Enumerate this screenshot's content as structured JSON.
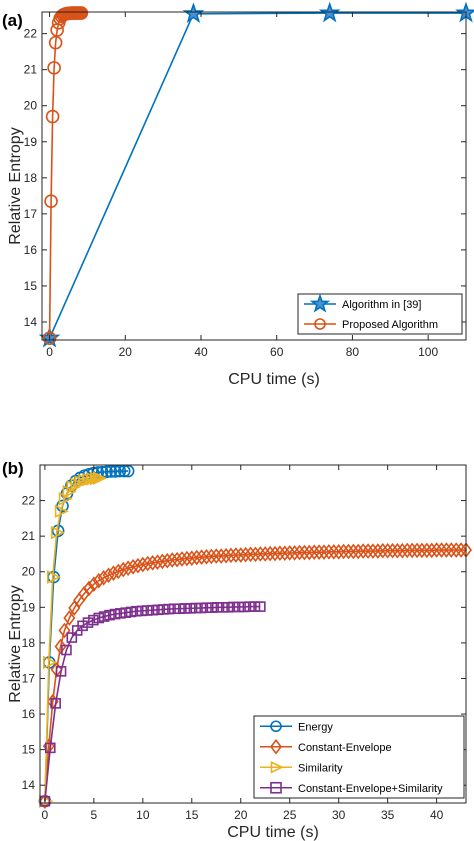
{
  "chart_data": [
    {
      "type": "line",
      "panel_label": "(a)",
      "xlabel": "CPU time (s)",
      "ylabel": "Relative Entropy",
      "xlim": [
        -2,
        110
      ],
      "ylim": [
        13.5,
        22.6
      ],
      "xticks": [
        "0",
        "20",
        "40",
        "60",
        "80",
        "100"
      ],
      "xtick_values": [
        0,
        20,
        40,
        60,
        80,
        100
      ],
      "yticks": [
        "14",
        "15",
        "16",
        "17",
        "18",
        "19",
        "20",
        "21",
        "22"
      ],
      "ytick_values": [
        14,
        15,
        16,
        17,
        18,
        19,
        20,
        21,
        22
      ],
      "grid": false,
      "legend_position": "bottom-right",
      "series": [
        {
          "name": "Algorithm in [39]",
          "color": "#0072BD",
          "marker": "star",
          "x": [
            0,
            38,
            74,
            110
          ],
          "y": [
            13.55,
            22.55,
            22.57,
            22.57
          ]
        },
        {
          "name": "Proposed Algorithm",
          "color": "#D95319",
          "marker": "circle",
          "x": [
            0,
            0.4,
            0.8,
            1.2,
            1.6,
            2.0,
            2.4,
            2.8,
            3.2,
            3.6,
            4.0,
            4.4,
            4.8,
            5.2,
            5.6,
            6.0,
            6.4,
            6.8,
            7.2,
            7.6,
            8.0,
            8.4
          ],
          "y": [
            13.55,
            17.35,
            19.7,
            21.05,
            21.75,
            22.1,
            22.3,
            22.42,
            22.48,
            22.52,
            22.54,
            22.55,
            22.56,
            22.56,
            22.57,
            22.57,
            22.57,
            22.57,
            22.57,
            22.57,
            22.57,
            22.57
          ]
        }
      ]
    },
    {
      "type": "line",
      "panel_label": "(b)",
      "xlabel": "CPU time (s)",
      "ylabel": "Relative Entropy",
      "xlim": [
        -0.5,
        43
      ],
      "ylim": [
        13.5,
        23.0
      ],
      "xticks": [
        "0",
        "5",
        "10",
        "15",
        "20",
        "25",
        "30",
        "35",
        "40"
      ],
      "xtick_values": [
        0,
        5,
        10,
        15,
        20,
        25,
        30,
        35,
        40
      ],
      "yticks": [
        "14",
        "15",
        "16",
        "17",
        "18",
        "19",
        "20",
        "21",
        "22"
      ],
      "ytick_values": [
        14,
        15,
        16,
        17,
        18,
        19,
        20,
        21,
        22
      ],
      "grid": false,
      "legend_position": "bottom-right",
      "series": [
        {
          "name": "Energy",
          "color": "#0072BD",
          "marker": "circle",
          "x": [
            0,
            0.45,
            0.9,
            1.35,
            1.8,
            2.25,
            2.7,
            3.15,
            3.6,
            4.05,
            4.5,
            4.95,
            5.4,
            5.85,
            6.3,
            6.75,
            7.2,
            7.65,
            8.1,
            8.5
          ],
          "y": [
            13.55,
            17.45,
            19.85,
            21.15,
            21.85,
            22.2,
            22.42,
            22.55,
            22.64,
            22.7,
            22.74,
            22.77,
            22.79,
            22.8,
            22.81,
            22.82,
            22.82,
            22.83,
            22.83,
            22.83
          ]
        },
        {
          "name": "Constant-Envelope",
          "color": "#D95319",
          "marker": "diamond",
          "x": [
            0,
            0.4,
            0.8,
            1.2,
            1.6,
            2.0,
            2.5,
            3.0,
            3.5,
            4.0,
            4.5,
            5.0,
            5.5,
            6.0,
            6.5,
            7.0,
            7.5,
            8.0,
            8.5,
            9.0,
            9.5,
            10.0,
            10.5,
            11.0,
            11.5,
            12.0,
            12.5,
            13.0,
            13.5,
            14.0,
            14.5,
            15.0,
            15.5,
            16.0,
            16.5,
            17.0,
            17.5,
            18.0,
            18.5,
            19.0,
            19.5,
            20.0,
            20.5,
            21.0,
            21.5,
            22.0,
            22.5,
            23.0,
            23.5,
            24.0,
            24.5,
            25.0,
            25.5,
            26.0,
            26.5,
            27.0,
            27.5,
            28.0,
            28.5,
            29.0,
            29.5,
            30.0,
            30.5,
            31.0,
            31.5,
            32.0,
            32.5,
            33.0,
            33.5,
            34.0,
            34.5,
            35.0,
            35.5,
            36.0,
            36.5,
            37.0,
            37.5,
            38.0,
            38.5,
            39.0,
            39.5,
            40.0,
            40.5,
            41.0,
            41.5,
            42.0,
            42.5,
            43.0
          ],
          "y": [
            13.55,
            15.1,
            16.35,
            17.25,
            17.9,
            18.35,
            18.7,
            18.98,
            19.2,
            19.38,
            19.53,
            19.65,
            19.75,
            19.83,
            19.9,
            19.96,
            20.01,
            20.06,
            20.1,
            20.14,
            20.17,
            20.2,
            20.23,
            20.25,
            20.27,
            20.29,
            20.31,
            20.33,
            20.34,
            20.36,
            20.37,
            20.38,
            20.4,
            20.41,
            20.42,
            20.43,
            20.44,
            20.44,
            20.45,
            20.46,
            20.47,
            20.47,
            20.48,
            20.49,
            20.49,
            20.5,
            20.5,
            20.51,
            20.51,
            20.52,
            20.52,
            20.53,
            20.53,
            20.54,
            20.54,
            20.54,
            20.55,
            20.55,
            20.55,
            20.56,
            20.56,
            20.56,
            20.57,
            20.57,
            20.57,
            20.57,
            20.58,
            20.58,
            20.58,
            20.58,
            20.59,
            20.59,
            20.59,
            20.59,
            20.59,
            20.6,
            20.6,
            20.6,
            20.6,
            20.6,
            20.6,
            20.61,
            20.61,
            20.61,
            20.61,
            20.61,
            20.61,
            20.61
          ]
        },
        {
          "name": "Similarity",
          "color": "#EDB120",
          "marker": "triangle-right",
          "x": [
            0,
            0.4,
            0.8,
            1.2,
            1.6,
            2.0,
            2.4,
            2.8,
            3.2,
            3.6,
            4.0,
            4.4,
            4.8,
            5.2,
            5.5
          ],
          "y": [
            13.55,
            17.45,
            19.85,
            21.1,
            21.7,
            22.05,
            22.25,
            22.38,
            22.46,
            22.52,
            22.56,
            22.59,
            22.61,
            22.62,
            22.63
          ]
        },
        {
          "name": "Constant-Envelope+Similarity",
          "color": "#7E2F8E",
          "marker": "square",
          "x": [
            0,
            0.55,
            1.1,
            1.65,
            2.2,
            2.75,
            3.3,
            3.85,
            4.4,
            4.95,
            5.5,
            6.05,
            6.6,
            7.15,
            7.7,
            8.25,
            8.8,
            9.35,
            9.9,
            10.45,
            11.0,
            11.55,
            12.1,
            12.65,
            13.2,
            13.75,
            14.3,
            14.85,
            15.4,
            15.95,
            16.5,
            17.05,
            17.6,
            18.15,
            18.7,
            19.25,
            19.8,
            20.35,
            20.9,
            21.45,
            22.0
          ],
          "y": [
            13.55,
            15.05,
            16.3,
            17.2,
            17.8,
            18.15,
            18.35,
            18.48,
            18.57,
            18.64,
            18.7,
            18.74,
            18.78,
            18.81,
            18.83,
            18.85,
            18.87,
            18.89,
            18.9,
            18.91,
            18.92,
            18.93,
            18.94,
            18.95,
            18.96,
            18.96,
            18.97,
            18.97,
            18.98,
            18.98,
            18.99,
            18.99,
            19.0,
            19.0,
            19.0,
            19.01,
            19.01,
            19.01,
            19.02,
            19.02,
            19.02
          ]
        }
      ]
    }
  ]
}
